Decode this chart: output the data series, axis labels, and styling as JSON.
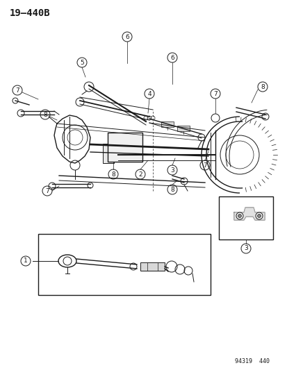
{
  "title": "19—440B",
  "footer": "94319  440",
  "background_color": "#ffffff",
  "line_color": "#1a1a1a",
  "fig_width": 4.14,
  "fig_height": 5.33,
  "dpi": 100
}
